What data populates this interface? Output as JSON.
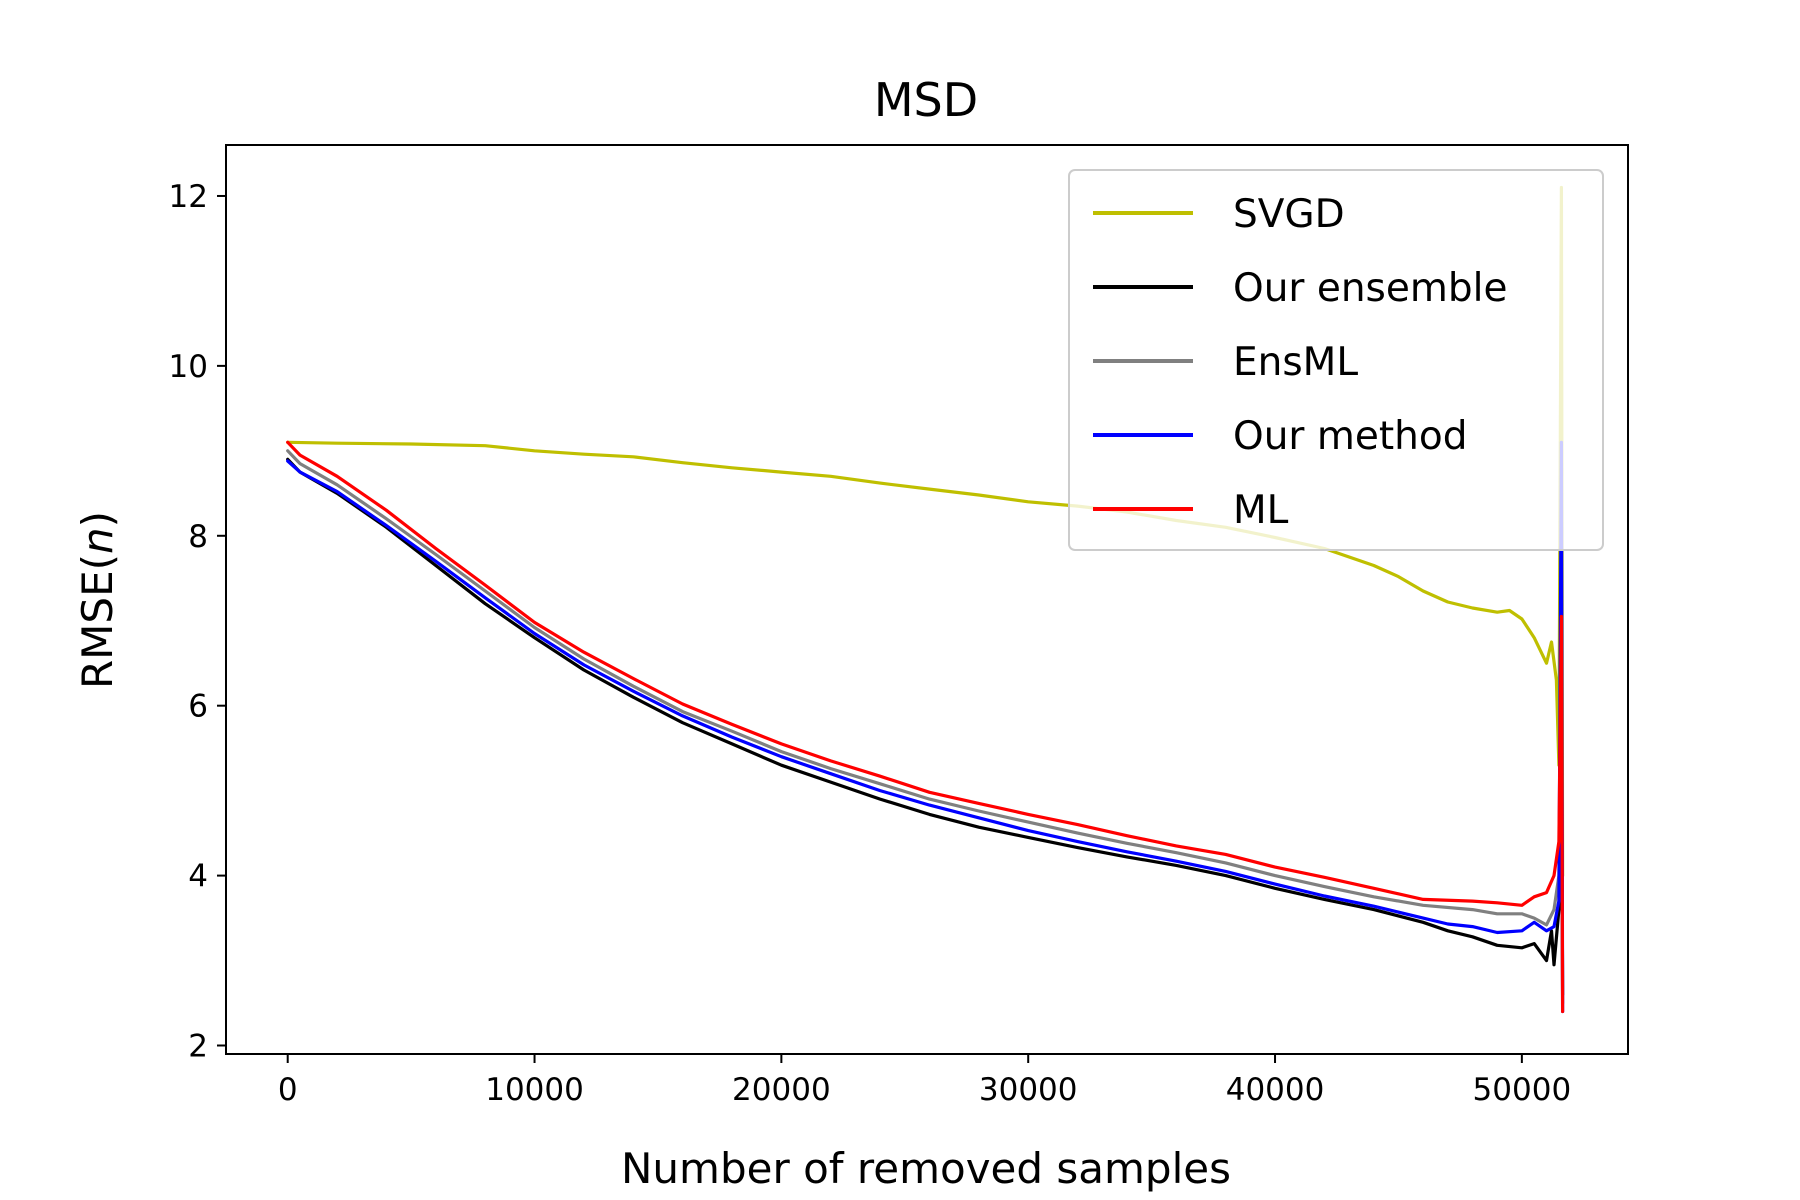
{
  "chart_data": {
    "type": "line",
    "title": "MSD",
    "xlabel": "Number of removed samples",
    "ylabel_main": "RMSE(",
    "ylabel_var": "n",
    "ylabel_close": ")",
    "xlim": [
      -2500,
      54300
    ],
    "ylim": [
      1.9,
      12.6
    ],
    "xticks": [
      0,
      10000,
      20000,
      30000,
      40000,
      50000
    ],
    "xtick_labels": [
      "0",
      "10000",
      "20000",
      "30000",
      "40000",
      "50000"
    ],
    "yticks": [
      2,
      4,
      6,
      8,
      10,
      12
    ],
    "ytick_labels": [
      "2",
      "4",
      "6",
      "8",
      "10",
      "12"
    ],
    "grid": false,
    "legend_position": "top-right",
    "series": [
      {
        "name": "SVGD",
        "color": "#bfbf00",
        "points": [
          [
            0,
            9.1
          ],
          [
            2000,
            9.09
          ],
          [
            5000,
            9.08
          ],
          [
            8000,
            9.06
          ],
          [
            10000,
            9.0
          ],
          [
            12000,
            8.96
          ],
          [
            14000,
            8.93
          ],
          [
            16000,
            8.86
          ],
          [
            18000,
            8.8
          ],
          [
            20000,
            8.75
          ],
          [
            22000,
            8.7
          ],
          [
            24000,
            8.62
          ],
          [
            26000,
            8.55
          ],
          [
            28000,
            8.48
          ],
          [
            30000,
            8.4
          ],
          [
            32000,
            8.35
          ],
          [
            34000,
            8.28
          ],
          [
            36000,
            8.18
          ],
          [
            38000,
            8.1
          ],
          [
            40000,
            7.98
          ],
          [
            42000,
            7.85
          ],
          [
            44000,
            7.65
          ],
          [
            45000,
            7.52
          ],
          [
            46000,
            7.35
          ],
          [
            47000,
            7.22
          ],
          [
            48000,
            7.15
          ],
          [
            49000,
            7.1
          ],
          [
            49500,
            7.12
          ],
          [
            50000,
            7.02
          ],
          [
            50500,
            6.8
          ],
          [
            51000,
            6.5
          ],
          [
            51200,
            6.75
          ],
          [
            51400,
            6.3
          ],
          [
            51500,
            5.3
          ],
          [
            51600,
            12.1
          ],
          [
            51650,
            4.0
          ]
        ]
      },
      {
        "name": "Our ensemble",
        "color": "#000000",
        "points": [
          [
            0,
            8.9
          ],
          [
            500,
            8.75
          ],
          [
            2000,
            8.5
          ],
          [
            4000,
            8.1
          ],
          [
            6000,
            7.65
          ],
          [
            8000,
            7.2
          ],
          [
            10000,
            6.8
          ],
          [
            12000,
            6.42
          ],
          [
            14000,
            6.1
          ],
          [
            16000,
            5.8
          ],
          [
            18000,
            5.55
          ],
          [
            20000,
            5.3
          ],
          [
            22000,
            5.1
          ],
          [
            24000,
            4.9
          ],
          [
            26000,
            4.72
          ],
          [
            28000,
            4.57
          ],
          [
            30000,
            4.45
          ],
          [
            32000,
            4.33
          ],
          [
            34000,
            4.22
          ],
          [
            36000,
            4.12
          ],
          [
            38000,
            4.0
          ],
          [
            40000,
            3.85
          ],
          [
            42000,
            3.72
          ],
          [
            44000,
            3.6
          ],
          [
            46000,
            3.45
          ],
          [
            47000,
            3.35
          ],
          [
            48000,
            3.28
          ],
          [
            49000,
            3.18
          ],
          [
            50000,
            3.15
          ],
          [
            50500,
            3.2
          ],
          [
            51000,
            3.0
          ],
          [
            51200,
            3.35
          ],
          [
            51300,
            2.95
          ],
          [
            51500,
            3.6
          ],
          [
            51600,
            6.0
          ],
          [
            51650,
            2.6
          ]
        ]
      },
      {
        "name": "EnsML",
        "color": "#808080",
        "points": [
          [
            0,
            9.0
          ],
          [
            500,
            8.85
          ],
          [
            2000,
            8.6
          ],
          [
            4000,
            8.2
          ],
          [
            6000,
            7.78
          ],
          [
            8000,
            7.35
          ],
          [
            10000,
            6.92
          ],
          [
            12000,
            6.55
          ],
          [
            14000,
            6.23
          ],
          [
            16000,
            5.93
          ],
          [
            18000,
            5.7
          ],
          [
            20000,
            5.46
          ],
          [
            22000,
            5.26
          ],
          [
            24000,
            5.08
          ],
          [
            26000,
            4.9
          ],
          [
            28000,
            4.76
          ],
          [
            30000,
            4.63
          ],
          [
            32000,
            4.5
          ],
          [
            34000,
            4.38
          ],
          [
            36000,
            4.27
          ],
          [
            38000,
            4.15
          ],
          [
            40000,
            4.0
          ],
          [
            42000,
            3.87
          ],
          [
            44000,
            3.75
          ],
          [
            46000,
            3.65
          ],
          [
            48000,
            3.6
          ],
          [
            49000,
            3.55
          ],
          [
            50000,
            3.55
          ],
          [
            50500,
            3.5
          ],
          [
            51000,
            3.42
          ],
          [
            51300,
            3.6
          ],
          [
            51500,
            4.0
          ],
          [
            51600,
            7.0
          ],
          [
            51650,
            2.5
          ]
        ]
      },
      {
        "name": "Our method",
        "color": "#0000ff",
        "points": [
          [
            0,
            8.88
          ],
          [
            500,
            8.75
          ],
          [
            2000,
            8.52
          ],
          [
            4000,
            8.12
          ],
          [
            6000,
            7.7
          ],
          [
            8000,
            7.27
          ],
          [
            10000,
            6.85
          ],
          [
            12000,
            6.48
          ],
          [
            14000,
            6.17
          ],
          [
            16000,
            5.88
          ],
          [
            18000,
            5.63
          ],
          [
            20000,
            5.4
          ],
          [
            22000,
            5.2
          ],
          [
            24000,
            5.0
          ],
          [
            26000,
            4.83
          ],
          [
            28000,
            4.68
          ],
          [
            30000,
            4.53
          ],
          [
            32000,
            4.4
          ],
          [
            34000,
            4.28
          ],
          [
            36000,
            4.17
          ],
          [
            38000,
            4.05
          ],
          [
            40000,
            3.9
          ],
          [
            42000,
            3.76
          ],
          [
            44000,
            3.64
          ],
          [
            46000,
            3.5
          ],
          [
            47000,
            3.43
          ],
          [
            48000,
            3.4
          ],
          [
            49000,
            3.33
          ],
          [
            50000,
            3.35
          ],
          [
            50500,
            3.45
          ],
          [
            51000,
            3.35
          ],
          [
            51300,
            3.4
          ],
          [
            51500,
            3.7
          ],
          [
            51600,
            9.1
          ],
          [
            51650,
            2.4
          ]
        ]
      },
      {
        "name": "ML",
        "color": "#ff0000",
        "points": [
          [
            0,
            9.1
          ],
          [
            500,
            8.95
          ],
          [
            2000,
            8.7
          ],
          [
            4000,
            8.3
          ],
          [
            6000,
            7.85
          ],
          [
            8000,
            7.42
          ],
          [
            10000,
            6.98
          ],
          [
            12000,
            6.63
          ],
          [
            14000,
            6.32
          ],
          [
            16000,
            6.02
          ],
          [
            18000,
            5.78
          ],
          [
            20000,
            5.55
          ],
          [
            22000,
            5.35
          ],
          [
            24000,
            5.17
          ],
          [
            26000,
            4.98
          ],
          [
            28000,
            4.85
          ],
          [
            30000,
            4.72
          ],
          [
            32000,
            4.6
          ],
          [
            34000,
            4.47
          ],
          [
            36000,
            4.35
          ],
          [
            38000,
            4.25
          ],
          [
            40000,
            4.1
          ],
          [
            42000,
            3.98
          ],
          [
            44000,
            3.85
          ],
          [
            46000,
            3.72
          ],
          [
            48000,
            3.7
          ],
          [
            49000,
            3.68
          ],
          [
            50000,
            3.65
          ],
          [
            50500,
            3.75
          ],
          [
            51000,
            3.8
          ],
          [
            51300,
            4.0
          ],
          [
            51500,
            4.4
          ],
          [
            51600,
            7.05
          ],
          [
            51650,
            2.4
          ]
        ]
      }
    ]
  }
}
